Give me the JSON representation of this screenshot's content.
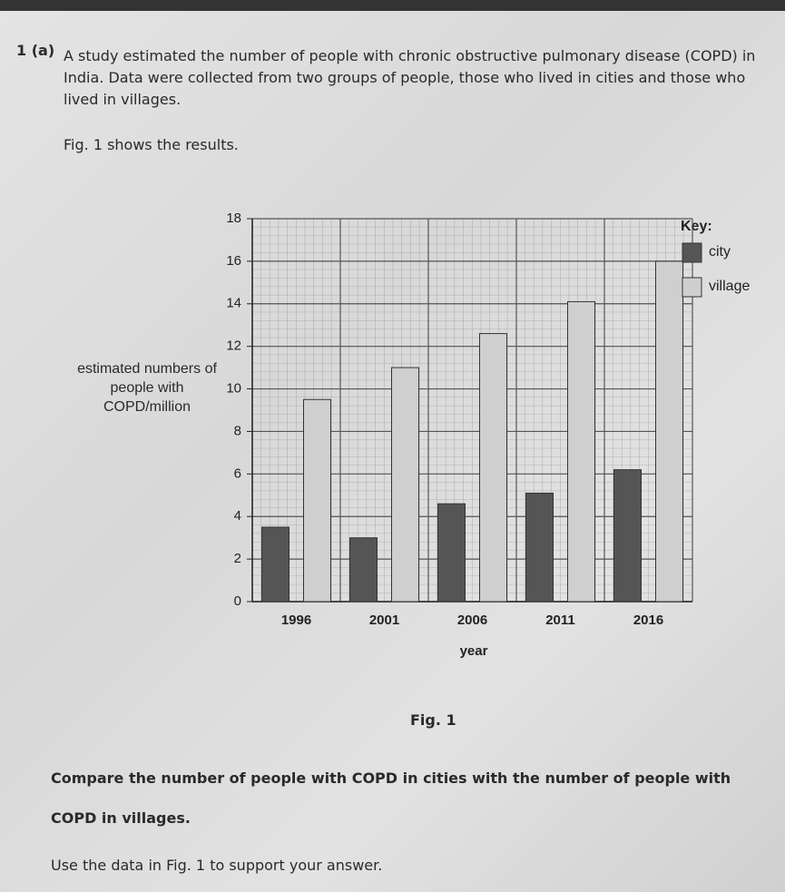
{
  "question": {
    "number": "1 (a)",
    "intro": "A study estimated the number of people with chronic obstructive pulmonary disease (COPD) in India. Data were collected from two groups of people, those who lived in cities and those who lived in villages.",
    "figure_ref": "Fig. 1 shows the results.",
    "caption": "Fig. 1",
    "prompt": "Compare the number of people with COPD in cities with the number of people with COPD in villages.",
    "instruction": "Use the data in Fig. 1 to support your answer."
  },
  "chart_data": {
    "type": "bar",
    "y_label": "estimated numbers of people with COPD/million",
    "x_label": "year",
    "legend_title": "Key:",
    "categories": [
      "1996",
      "2001",
      "2006",
      "2011",
      "2016"
    ],
    "series": [
      {
        "name": "city",
        "color": "#555555",
        "values": [
          3.5,
          3.0,
          4.6,
          5.1,
          6.2
        ]
      },
      {
        "name": "village",
        "color": "#cfcfcf",
        "values": [
          9.5,
          11,
          12.6,
          14.1,
          16.0
        ]
      }
    ],
    "ylim": [
      0,
      18
    ],
    "yticks": [
      0,
      2,
      4,
      6,
      8,
      10,
      12,
      14,
      16,
      18
    ],
    "grid": true
  }
}
